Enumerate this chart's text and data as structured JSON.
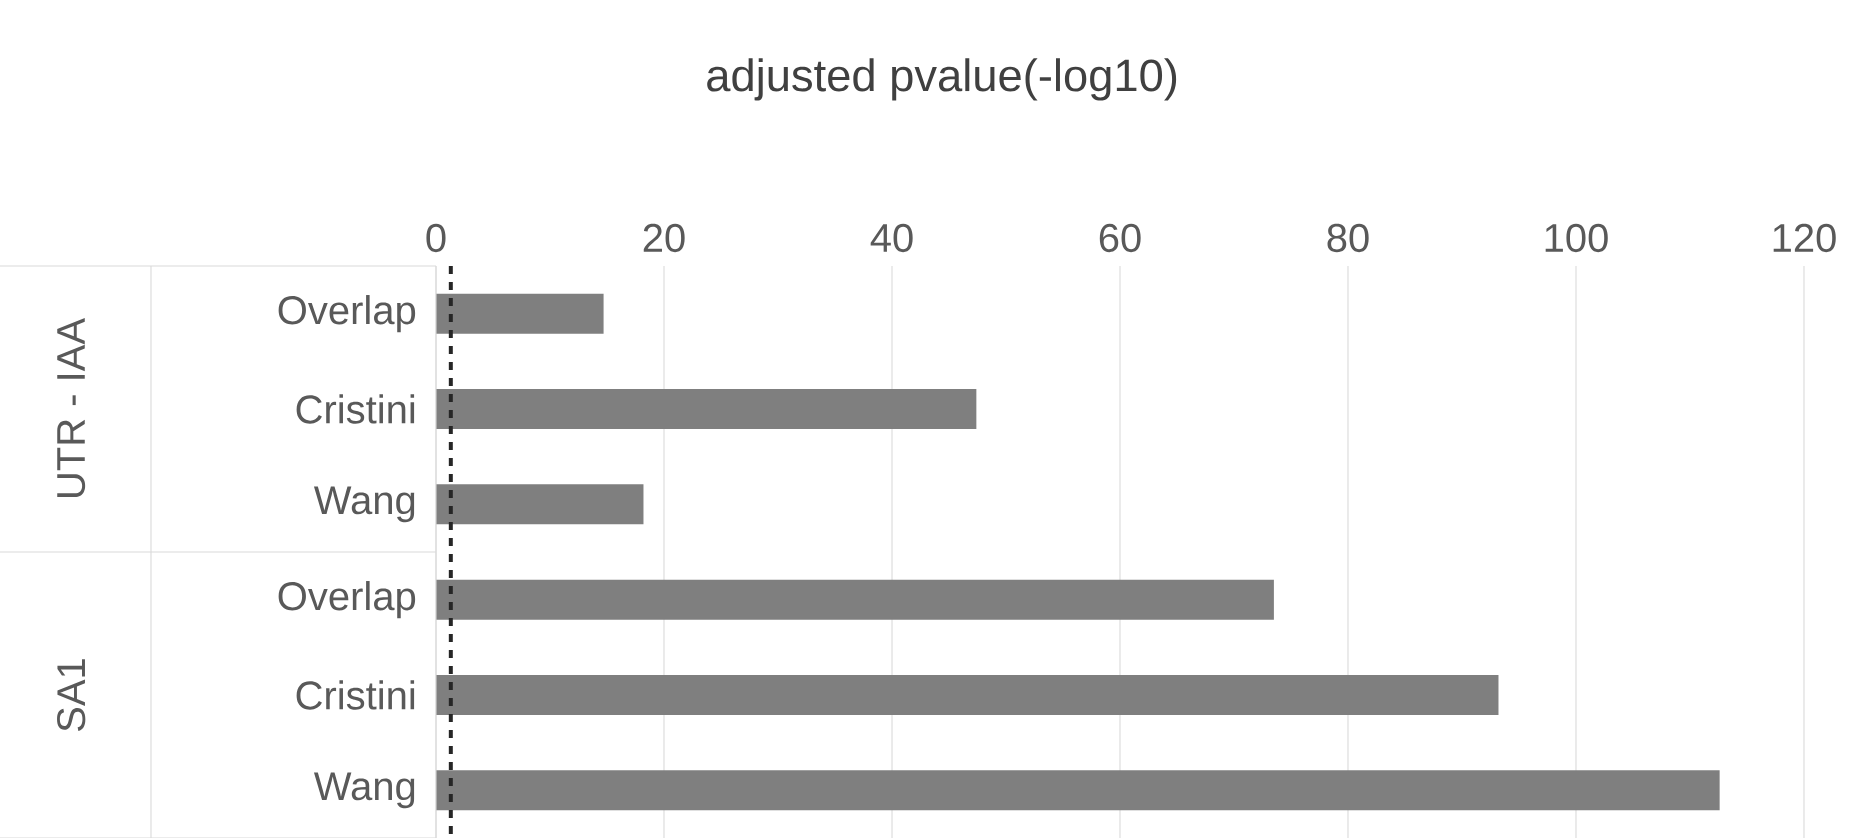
{
  "chart_data": {
    "type": "bar",
    "orientation": "horizontal",
    "xlabel": "adjusted pvalue(-log10)",
    "categories": [
      "Overlap",
      "Cristini",
      "Wang",
      "Overlap",
      "Cristini",
      "Wang"
    ],
    "values": [
      14.7,
      47.4,
      18.2,
      73.5,
      93.2,
      112.6
    ],
    "color": "#7f7f7f",
    "xlim": [
      0,
      120
    ],
    "xticks": [
      0,
      20,
      40,
      60,
      80,
      100,
      120
    ],
    "grid": "x",
    "ref_lines": [
      {
        "axis": "x",
        "value": 1.3,
        "color": "#262626",
        "line_style": "dashed"
      }
    ],
    "annotations": [
      "UTR - IAA",
      "SA1"
    ]
  }
}
